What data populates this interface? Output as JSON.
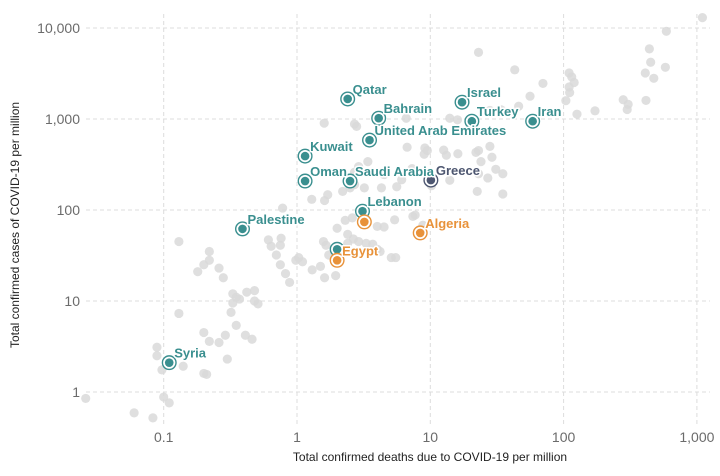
{
  "chart_data": {
    "type": "scatter",
    "title": "",
    "xlabel": "Total confirmed deaths due to COVID-19 per million",
    "ylabel": "Total confirmed cases of COVID-19 per million",
    "xscale": "log",
    "yscale": "log",
    "xlim": [
      0.025,
      1200
    ],
    "ylim": [
      0.45,
      13000
    ],
    "grid": true,
    "x_ticks": [
      {
        "value": 0.1,
        "label": "0.1"
      },
      {
        "value": 1,
        "label": "1"
      },
      {
        "value": 10,
        "label": "10"
      },
      {
        "value": 100,
        "label": "100"
      },
      {
        "value": 1000,
        "label": "1,000"
      }
    ],
    "y_ticks": [
      {
        "value": 1,
        "label": "1"
      },
      {
        "value": 10,
        "label": "10"
      },
      {
        "value": 100,
        "label": "100"
      },
      {
        "value": 1000,
        "label": "1,000"
      },
      {
        "value": 10000,
        "label": "10,000"
      }
    ],
    "colors": {
      "teal": "#3a8f8f",
      "orange": "#e8923a",
      "slate": "#4d5670",
      "background_points": "#d9d9d9"
    },
    "highlighted": [
      {
        "name": "Qatar",
        "x": 2.4,
        "y": 1660,
        "color": "teal",
        "label": "Qatar",
        "label_pos": "top-right"
      },
      {
        "name": "Bahrain",
        "x": 4.1,
        "y": 1020,
        "color": "teal",
        "label": "Bahrain",
        "label_pos": "top-right"
      },
      {
        "name": "United Arab Emirates",
        "x": 3.5,
        "y": 586,
        "color": "teal",
        "label": "United Arab Emirates",
        "label_pos": "top-right"
      },
      {
        "name": "Kuwait",
        "x": 1.15,
        "y": 391,
        "color": "teal",
        "label": "Kuwait",
        "label_pos": "top-right"
      },
      {
        "name": "Oman",
        "x": 1.15,
        "y": 208,
        "color": "teal",
        "label": "Oman",
        "label_pos": "top-right"
      },
      {
        "name": "Saudi Arabia",
        "x": 2.5,
        "y": 208,
        "color": "teal",
        "label": "Saudi Arabia",
        "label_pos": "top-right"
      },
      {
        "name": "Greece",
        "x": 10.1,
        "y": 213,
        "color": "slate",
        "label": "Greece",
        "label_pos": "top-right"
      },
      {
        "name": "Israel",
        "x": 17.3,
        "y": 1530,
        "color": "teal",
        "label": "Israel",
        "label_pos": "top-right"
      },
      {
        "name": "Turkey",
        "x": 20.5,
        "y": 945,
        "color": "teal",
        "label": "Turkey",
        "label_pos": "top-right"
      },
      {
        "name": "Iran",
        "x": 58.6,
        "y": 945,
        "color": "teal",
        "label": "Iran",
        "label_pos": "top-right"
      },
      {
        "name": "Lebanon",
        "x": 3.1,
        "y": 97,
        "color": "teal",
        "label": "Lebanon",
        "label_pos": "top-right"
      },
      {
        "name": "Lebanon (orange)",
        "x": 3.2,
        "y": 74,
        "color": "orange",
        "label": "",
        "label_pos": "none"
      },
      {
        "name": "Palestine",
        "x": 0.39,
        "y": 62,
        "color": "teal",
        "label": "Palestine",
        "label_pos": "top-right"
      },
      {
        "name": "Algeria",
        "x": 8.4,
        "y": 56,
        "color": "orange",
        "label": "Algeria",
        "label_pos": "top-right"
      },
      {
        "name": "Egypt (teal)",
        "x": 2.0,
        "y": 37,
        "color": "teal",
        "label": "",
        "label_pos": "none"
      },
      {
        "name": "Egypt",
        "x": 2.0,
        "y": 28,
        "color": "orange",
        "label": "Egypt",
        "label_pos": "top-right"
      },
      {
        "name": "Syria",
        "x": 0.11,
        "y": 2.1,
        "color": "teal",
        "label": "Syria",
        "label_pos": "top-right"
      }
    ],
    "background": [
      [
        0.026,
        0.85
      ],
      [
        0.06,
        0.59
      ],
      [
        0.083,
        0.52
      ],
      [
        0.1,
        0.88
      ],
      [
        0.11,
        0.76
      ],
      [
        0.089,
        3.1
      ],
      [
        0.089,
        2.5
      ],
      [
        0.097,
        1.75
      ],
      [
        0.14,
        1.92
      ],
      [
        0.2,
        1.6
      ],
      [
        0.21,
        1.56
      ],
      [
        0.13,
        7.3
      ],
      [
        0.2,
        4.5
      ],
      [
        0.22,
        3.6
      ],
      [
        0.29,
        4.2
      ],
      [
        0.26,
        3.5
      ],
      [
        0.3,
        2.3
      ],
      [
        0.18,
        21
      ],
      [
        0.2,
        25
      ],
      [
        0.13,
        45
      ],
      [
        0.22,
        35
      ],
      [
        0.22,
        28
      ],
      [
        0.28,
        18
      ],
      [
        0.26,
        23
      ],
      [
        0.33,
        12
      ],
      [
        0.35,
        11
      ],
      [
        0.37,
        10.5
      ],
      [
        0.33,
        9.5
      ],
      [
        0.48,
        10
      ],
      [
        0.48,
        13
      ],
      [
        0.32,
        7.5
      ],
      [
        0.42,
        12.5
      ],
      [
        0.51,
        9.3
      ],
      [
        0.35,
        5.4
      ],
      [
        0.41,
        4.2
      ],
      [
        0.46,
        3.8
      ],
      [
        0.61,
        47
      ],
      [
        0.64,
        40
      ],
      [
        0.76,
        49
      ],
      [
        0.75,
        41
      ],
      [
        0.7,
        32
      ],
      [
        0.75,
        25
      ],
      [
        0.82,
        20
      ],
      [
        0.98,
        28
      ],
      [
        1.03,
        30
      ],
      [
        1.1,
        27
      ],
      [
        1.3,
        22
      ],
      [
        1.5,
        24
      ],
      [
        1.65,
        41
      ],
      [
        1.58,
        45
      ],
      [
        1.73,
        32
      ],
      [
        1.95,
        19
      ],
      [
        1.61,
        18
      ],
      [
        0.88,
        16
      ],
      [
        0.78,
        105
      ],
      [
        1.29,
        131
      ],
      [
        1.61,
        127
      ],
      [
        1.7,
        147
      ],
      [
        2.0,
        63
      ],
      [
        2.3,
        77
      ],
      [
        2.4,
        54
      ],
      [
        2.4,
        43
      ],
      [
        2.65,
        48
      ],
      [
        2.9,
        45
      ],
      [
        3.3,
        43
      ],
      [
        3.7,
        42
      ],
      [
        4.0,
        37
      ],
      [
        4.2,
        35
      ],
      [
        5.1,
        30
      ],
      [
        5.5,
        30
      ],
      [
        2.6,
        82
      ],
      [
        4.0,
        66
      ],
      [
        4.5,
        65
      ],
      [
        5.4,
        78
      ],
      [
        7.4,
        85
      ],
      [
        7.7,
        88
      ],
      [
        8.8,
        68
      ],
      [
        2.7,
        880
      ],
      [
        2.8,
        830
      ],
      [
        6.7,
        490
      ],
      [
        9.1,
        480
      ],
      [
        9.5,
        450
      ],
      [
        12.6,
        455
      ],
      [
        13.2,
        400
      ],
      [
        9.0,
        410
      ],
      [
        16.1,
        415
      ],
      [
        22,
        430
      ],
      [
        23,
        450
      ],
      [
        28,
        500
      ],
      [
        29,
        380
      ],
      [
        24,
        340
      ],
      [
        2.9,
        300
      ],
      [
        3.4,
        340
      ],
      [
        7.3,
        285
      ],
      [
        2.7,
        260
      ],
      [
        4.5,
        245
      ],
      [
        6.1,
        215
      ],
      [
        14,
        212
      ],
      [
        27,
        225
      ],
      [
        23,
        250
      ],
      [
        35,
        150
      ],
      [
        2.2,
        160
      ],
      [
        2.7,
        190
      ],
      [
        4.3,
        175
      ],
      [
        10.2,
        185
      ],
      [
        2.5,
        175
      ],
      [
        3.2,
        175
      ],
      [
        5.6,
        180
      ],
      [
        22.5,
        160
      ],
      [
        31,
        280
      ],
      [
        35,
        250
      ],
      [
        1.6,
        900
      ],
      [
        6.6,
        1020
      ],
      [
        14,
        1020
      ],
      [
        16,
        980
      ],
      [
        23,
        5400
      ],
      [
        43,
        3470
      ],
      [
        70,
        2460
      ],
      [
        56,
        1780
      ],
      [
        46,
        1380
      ],
      [
        34,
        1260
      ],
      [
        28,
        1240
      ],
      [
        110,
        3200
      ],
      [
        115,
        2900
      ],
      [
        120,
        2520
      ],
      [
        110,
        2250
      ],
      [
        111,
        1950
      ],
      [
        104,
        1590
      ],
      [
        126,
        1130
      ],
      [
        280,
        1630
      ],
      [
        305,
        1450
      ],
      [
        300,
        1270
      ],
      [
        415,
        1600
      ],
      [
        440,
        5900
      ],
      [
        450,
        4200
      ],
      [
        410,
        3200
      ],
      [
        1100,
        13000
      ],
      [
        590,
        9200
      ],
      [
        580,
        3700
      ],
      [
        475,
        2800
      ],
      [
        172,
        1230
      ]
    ]
  }
}
